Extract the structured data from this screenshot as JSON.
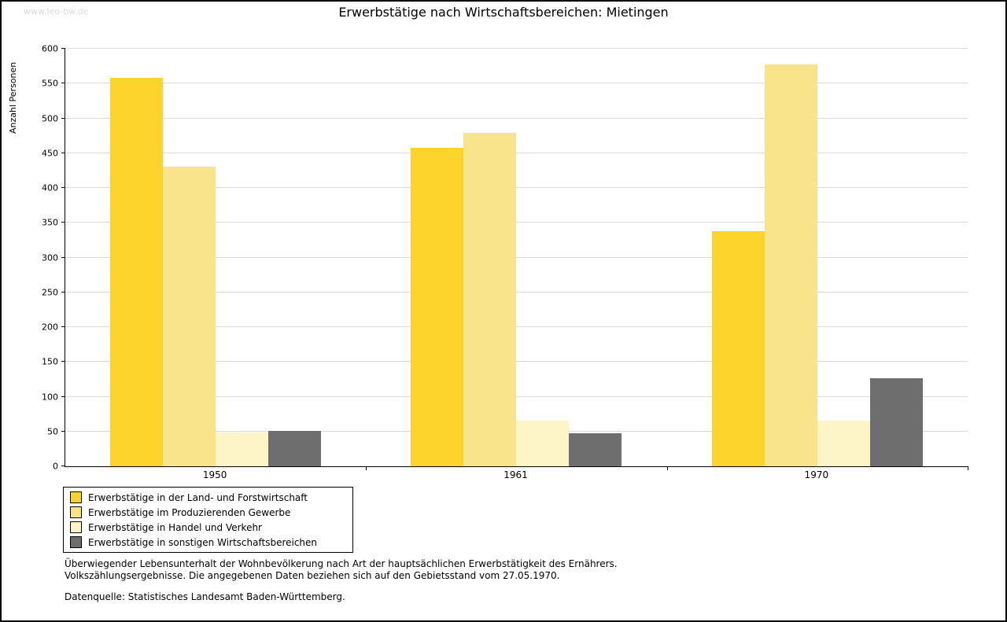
{
  "watermark": "www.leo-bw.de",
  "chart_data": {
    "type": "bar",
    "title": "Erwerbstätige nach Wirtschaftsbereichen: Mietingen",
    "xlabel": "",
    "ylabel": "Anzahl Personen",
    "ylim": [
      0,
      600
    ],
    "yticks": [
      0,
      50,
      100,
      150,
      200,
      250,
      300,
      350,
      400,
      450,
      500,
      550,
      600
    ],
    "grid": true,
    "legend_position": "bottom-left",
    "categories": [
      "1950",
      "1961",
      "1970"
    ],
    "series": [
      {
        "name": "Erwerbstätige in der Land- und Forstwirtschaft",
        "color": "#FCD42C",
        "values": [
          558,
          458,
          338
        ]
      },
      {
        "name": "Erwerbstätige im Produzierenden Gewerbe",
        "color": "#F9E48B",
        "values": [
          430,
          479,
          577
        ]
      },
      {
        "name": "Erwerbstätige in Handel und Verkehr",
        "color": "#FDF4C8",
        "values": [
          49,
          66,
          66
        ]
      },
      {
        "name": "Erwerbstätige in sonstigen Wirtschaftsbereichen",
        "color": "#6E6E6E",
        "values": [
          51,
          48,
          127
        ]
      }
    ]
  },
  "footnotes": [
    "Überwiegender Lebensunterhalt der Wohnbevölkerung nach Art der hauptsächlichen Erwerbstätigkeit des Ernährers.",
    "Volkszählungsergebnisse. Die angegebenen Daten beziehen sich auf den Gebietsstand vom 27.05.1970.",
    "Datenquelle: Statistisches Landesamt Baden-Württemberg."
  ]
}
